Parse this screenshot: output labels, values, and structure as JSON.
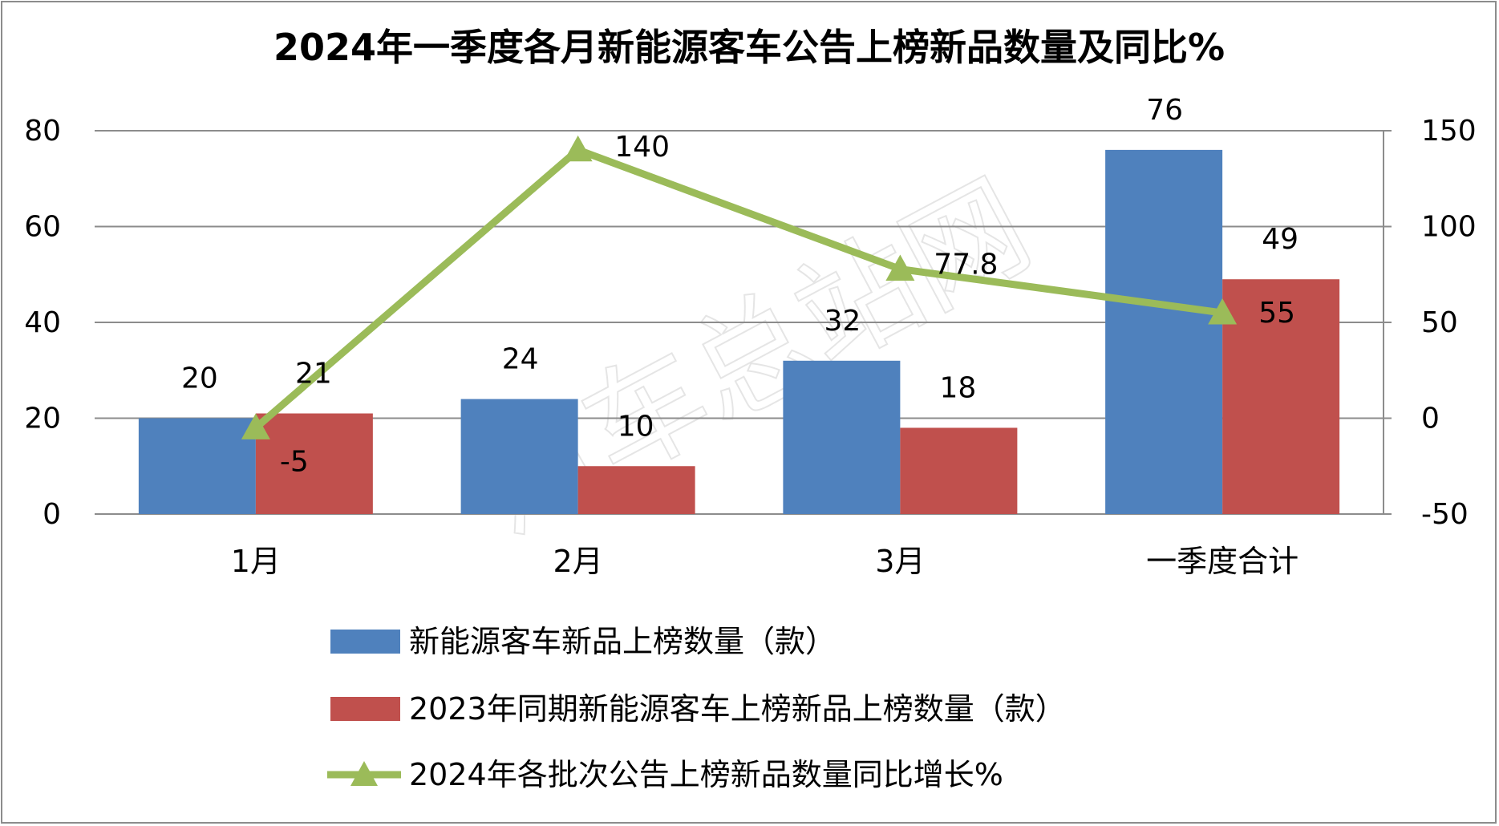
{
  "chart_data": {
    "type": "bar",
    "title": "2024年一季度各月新能源客车公告上榜新品数量及同比%",
    "categories": [
      "1月",
      "2月",
      "3月",
      "一季度合计"
    ],
    "series": [
      {
        "name": "新能源客车新品上榜数量（款）",
        "type": "bar",
        "axis": "left",
        "values": [
          20,
          24,
          32,
          76
        ],
        "labels": [
          "20",
          "24",
          "32",
          "76"
        ],
        "color": "#4f81bd"
      },
      {
        "name": "2023年同期新能源客车上榜新品上榜数量（款）",
        "type": "bar",
        "axis": "left",
        "values": [
          21,
          10,
          18,
          49
        ],
        "labels": [
          "21",
          "10",
          "18",
          "49"
        ],
        "color": "#c0504d"
      },
      {
        "name": "2024年各批次公告上榜新品数量同比增长%",
        "type": "line",
        "axis": "right",
        "values": [
          -5,
          140,
          77.8,
          55
        ],
        "labels": [
          "-5",
          "140",
          "77.8",
          "55"
        ],
        "color": "#9bbb59"
      }
    ],
    "y_left": {
      "min": 0,
      "max": 80,
      "ticks": [
        "0",
        "20",
        "40",
        "60",
        "80"
      ]
    },
    "y_right": {
      "min": -50,
      "max": 150,
      "ticks": [
        "-50",
        "0",
        "50",
        "100",
        "150"
      ]
    },
    "grid": true,
    "legend_position": "bottom"
  },
  "watermark": "汽车总站网"
}
